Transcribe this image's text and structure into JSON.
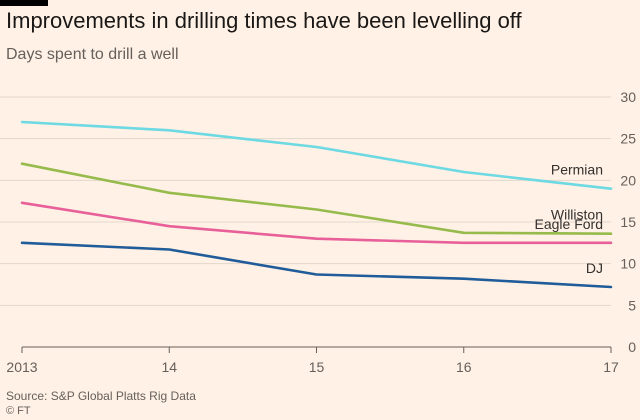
{
  "header": {
    "title": "Improvements in drilling times have been levelling off",
    "subtitle": "Days spent to drill a well"
  },
  "footer": {
    "source": "Source: S&P Global Platts Rig Data",
    "credit": "© FT"
  },
  "chart_data": {
    "type": "line",
    "title": "Improvements in drilling times have been levelling off",
    "subtitle": "Days spent to drill a well",
    "x": [
      2013,
      2014,
      2015,
      2016,
      2017
    ],
    "xtick_labels": [
      "2013",
      "14",
      "15",
      "16",
      "17"
    ],
    "ytick_labels": [
      "0",
      "5",
      "10",
      "15",
      "20",
      "25",
      "30"
    ],
    "xlim": [
      2013,
      2017
    ],
    "ylim": [
      0,
      30
    ],
    "grid": true,
    "y_axis_side": "right",
    "legend": "inline labels at line ends",
    "series": [
      {
        "name": "Permian",
        "color": "#6dd9e2",
        "values": [
          27.0,
          26.0,
          24.0,
          21.0,
          19.0
        ]
      },
      {
        "name": "Williston",
        "color": "#96bb4c",
        "values": [
          22.0,
          18.5,
          16.5,
          13.7,
          13.6
        ]
      },
      {
        "name": "Eagle Ford",
        "color": "#e8609a",
        "values": [
          17.3,
          14.5,
          13.0,
          12.5,
          12.5
        ]
      },
      {
        "name": "DJ",
        "color": "#1f5c99",
        "values": [
          12.5,
          11.7,
          8.7,
          8.2,
          7.2
        ]
      }
    ]
  }
}
